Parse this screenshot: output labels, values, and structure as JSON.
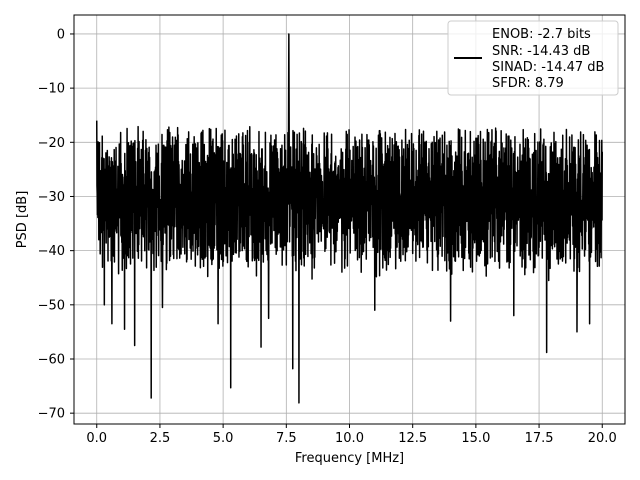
{
  "chart_data": {
    "type": "line",
    "xlabel": "Frequency [MHz]",
    "ylabel": "PSD [dB]",
    "xlim": [
      -0.9,
      20.9
    ],
    "ylim": [
      -72,
      3.5
    ],
    "xticks": [
      0.0,
      2.5,
      5.0,
      7.5,
      10.0,
      12.5,
      15.0,
      17.5,
      20.0
    ],
    "xtick_labels": [
      "0.0",
      "2.5",
      "5.0",
      "7.5",
      "10.0",
      "12.5",
      "15.0",
      "17.5",
      "20.0"
    ],
    "yticks": [
      0,
      -10,
      -20,
      -30,
      -40,
      -50,
      -60,
      -70
    ],
    "ytick_labels": [
      "0",
      "−10",
      "−20",
      "−30",
      "−40",
      "−50",
      "−60",
      "−70"
    ],
    "grid": true,
    "legend_position": "top-right",
    "series": [
      {
        "legend_lines": [
          "ENOB: -2.7 bits",
          "SNR: -14.43 dB",
          "SINAD: -14.47 dB",
          "SFDR: 8.79"
        ],
        "color": "#000000",
        "description_of_shape": "noise floor ~-30 dB fluctuating between about -20 and -45 dB with a peak at 7.6 MHz",
        "x_start": 0.0,
        "x_end": 20.0,
        "noise_mean": -30,
        "noise_upper": -17,
        "noise_lower": -42,
        "peaks": [
          {
            "x": 7.6,
            "y": 0
          },
          {
            "x": 0.0,
            "y": -16
          }
        ],
        "dips": [
          {
            "x": 0.3,
            "y": -50
          },
          {
            "x": 0.6,
            "y": -53.5
          },
          {
            "x": 1.1,
            "y": -54.5
          },
          {
            "x": 1.5,
            "y": -57.5
          },
          {
            "x": 2.15,
            "y": -67.2
          },
          {
            "x": 2.6,
            "y": -50.5
          },
          {
            "x": 4.8,
            "y": -53.5
          },
          {
            "x": 5.3,
            "y": -65.3
          },
          {
            "x": 6.5,
            "y": -57.8
          },
          {
            "x": 6.8,
            "y": -52.5
          },
          {
            "x": 7.75,
            "y": -61.8
          },
          {
            "x": 8.0,
            "y": -68.1
          },
          {
            "x": 11.0,
            "y": -51
          },
          {
            "x": 14.0,
            "y": -53
          },
          {
            "x": 16.5,
            "y": -52
          },
          {
            "x": 17.8,
            "y": -58.8
          },
          {
            "x": 19.0,
            "y": -55
          },
          {
            "x": 19.5,
            "y": -53.5
          }
        ]
      }
    ]
  }
}
